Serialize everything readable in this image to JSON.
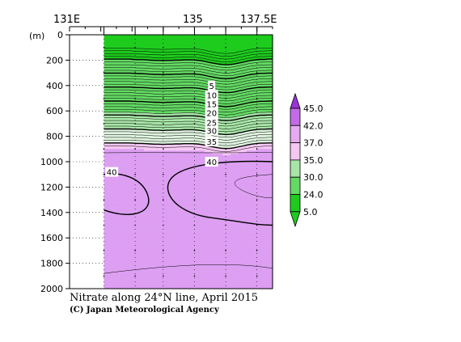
{
  "chart_data": {
    "type": "heatmap",
    "title": "Nitrate along 24°N line, April 2015",
    "credit": "(C) Japan Meteorological Agency",
    "ylabel": "(m)",
    "ylim": [
      0,
      2000
    ],
    "xlim": [
      131,
      137.5
    ],
    "x_ticks": [
      "131E",
      "135",
      "137.5E"
    ],
    "y_ticks": [
      "0",
      "200",
      "400",
      "600",
      "800",
      "1000",
      "1200",
      "1400",
      "1600",
      "1800",
      "2000"
    ],
    "y_tick_values": [
      0,
      200,
      400,
      600,
      800,
      1000,
      1200,
      1400,
      1600,
      1800,
      2000
    ],
    "data_start_lon": 132.1,
    "stations_lon": [
      132.1,
      133.1,
      134.0,
      135.0,
      136.0,
      137.0
    ],
    "colorbar": {
      "labels": [
        "45.0",
        "42.0",
        "37.0",
        "35.0",
        "30.0",
        "24.0",
        "5.0"
      ],
      "colors": [
        "#9a33d9",
        "#c36be6",
        "#e6aaef",
        "#f5c8f3",
        "#a8e6a8",
        "#64d964",
        "#1ecc1e"
      ]
    },
    "color_levels": [
      {
        "max": 5,
        "color": "#1ecc1e"
      },
      {
        "max": 24,
        "color": "#64d964"
      },
      {
        "max": 30,
        "color": "#a8e6a8"
      },
      {
        "max": 35,
        "color": "#e0f4e0"
      },
      {
        "max": 37,
        "color": "#f5c8f3"
      },
      {
        "max": 42,
        "color": "#dd9ff2"
      },
      {
        "max": 45,
        "color": "#c36be6"
      },
      {
        "max": 999,
        "color": "#9a33d9"
      }
    ],
    "contour_labels": [
      {
        "text": "5",
        "lon": 135.55,
        "depth": 400
      },
      {
        "text": "10",
        "lon": 135.55,
        "depth": 475
      },
      {
        "text": "15",
        "lon": 135.55,
        "depth": 545
      },
      {
        "text": "20",
        "lon": 135.55,
        "depth": 615
      },
      {
        "text": "25",
        "lon": 135.55,
        "depth": 690
      },
      {
        "text": "30",
        "lon": 135.55,
        "depth": 755
      },
      {
        "text": "35",
        "lon": 135.55,
        "depth": 840
      },
      {
        "text": "40",
        "lon": 135.55,
        "depth": 1000
      },
      {
        "text": "40",
        "lon": 132.35,
        "depth": 1080
      }
    ]
  }
}
